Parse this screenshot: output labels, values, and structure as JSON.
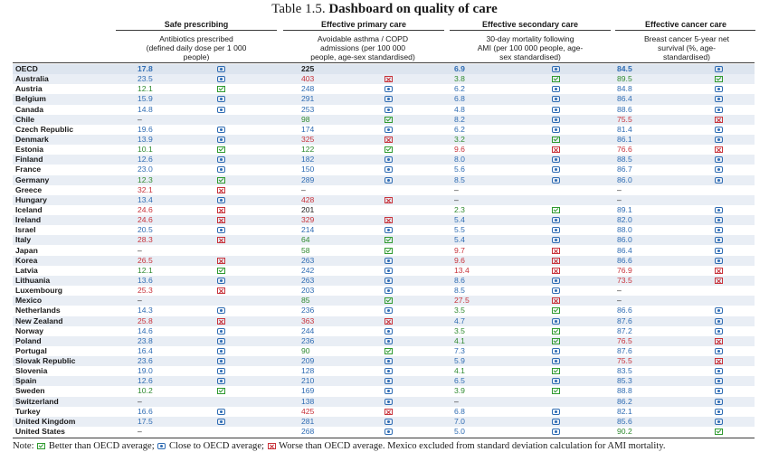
{
  "title_prefix": "Table 1.5.",
  "title_main": "Dashboard on quality of care",
  "groups": [
    {
      "label": "Safe prescribing",
      "sub": "Antibiotics prescribed\n(defined daily dose per 1 000\npeople)"
    },
    {
      "label": "Effective primary care",
      "sub": "Avoidable asthma / COPD\nadmissions (per 100 000\npeople, age-sex standardised)"
    },
    {
      "label": "Effective secondary care",
      "sub": "30-day mortality following\nAMI (per 100 000 people, age-\nsex standardised)"
    },
    {
      "label": "Effective cancer care",
      "sub": "Breast cancer 5-year net\nsurvival (%, age-\nstandardised)"
    }
  ],
  "rows": [
    {
      "country": "OECD",
      "v1": "17.8",
      "s1": "c",
      "v2": "225",
      "s2": "n",
      "v3": "6.9",
      "s3": "c",
      "v4": "84.5",
      "s4": "c"
    },
    {
      "country": "Australia",
      "v1": "23.5",
      "s1": "c",
      "v2": "403",
      "s2": "w",
      "v3": "3.8",
      "s3": "b",
      "v4": "89.5",
      "s4": "b"
    },
    {
      "country": "Austria",
      "v1": "12.1",
      "s1": "b",
      "v2": "248",
      "s2": "c",
      "v3": "6.2",
      "s3": "c",
      "v4": "84.8",
      "s4": "c"
    },
    {
      "country": "Belgium",
      "v1": "15.9",
      "s1": "c",
      "v2": "291",
      "s2": "c",
      "v3": "6.8",
      "s3": "c",
      "v4": "86.4",
      "s4": "c"
    },
    {
      "country": "Canada",
      "v1": "14.8",
      "s1": "c",
      "v2": "253",
      "s2": "c",
      "v3": "4.8",
      "s3": "c",
      "v4": "88.6",
      "s4": "c"
    },
    {
      "country": "Chile",
      "v1": "–",
      "s1": "",
      "v2": "98",
      "s2": "b",
      "v3": "8.2",
      "s3": "c",
      "v4": "75.5",
      "s4": "w"
    },
    {
      "country": "Czech Republic",
      "v1": "19.6",
      "s1": "c",
      "v2": "174",
      "s2": "c",
      "v3": "6.2",
      "s3": "c",
      "v4": "81.4",
      "s4": "c"
    },
    {
      "country": "Denmark",
      "v1": "13.9",
      "s1": "c",
      "v2": "325",
      "s2": "w",
      "v3": "3.2",
      "s3": "b",
      "v4": "86.1",
      "s4": "c"
    },
    {
      "country": "Estonia",
      "v1": "10.1",
      "s1": "b",
      "v2": "122",
      "s2": "b",
      "v3": "9.6",
      "s3": "w",
      "v4": "76.6",
      "s4": "w"
    },
    {
      "country": "Finland",
      "v1": "12.6",
      "s1": "c",
      "v2": "182",
      "s2": "c",
      "v3": "8.0",
      "s3": "c",
      "v4": "88.5",
      "s4": "c"
    },
    {
      "country": "France",
      "v1": "23.0",
      "s1": "c",
      "v2": "150",
      "s2": "c",
      "v3": "5.6",
      "s3": "c",
      "v4": "86.7",
      "s4": "c"
    },
    {
      "country": "Germany",
      "v1": "12.3",
      "s1": "b",
      "v2": "289",
      "s2": "c",
      "v3": "8.5",
      "s3": "c",
      "v4": "86.0",
      "s4": "c"
    },
    {
      "country": "Greece",
      "v1": "32.1",
      "s1": "w",
      "v2": "–",
      "s2": "",
      "v3": "–",
      "s3": "",
      "v4": "–",
      "s4": ""
    },
    {
      "country": "Hungary",
      "v1": "13.4",
      "s1": "c",
      "v2": "428",
      "s2": "w",
      "v3": "–",
      "s3": "",
      "v4": "–",
      "s4": ""
    },
    {
      "country": "Iceland",
      "v1": "24.6",
      "s1": "w",
      "v2": "201",
      "s2": "n",
      "v3": "2.3",
      "s3": "b",
      "v4": "89.1",
      "s4": "c"
    },
    {
      "country": "Ireland",
      "v1": "24.6",
      "s1": "w",
      "v2": "329",
      "s2": "w",
      "v3": "5.4",
      "s3": "c",
      "v4": "82.0",
      "s4": "c"
    },
    {
      "country": "Israel",
      "v1": "20.5",
      "s1": "c",
      "v2": "214",
      "s2": "c",
      "v3": "5.5",
      "s3": "c",
      "v4": "88.0",
      "s4": "c"
    },
    {
      "country": "Italy",
      "v1": "28.3",
      "s1": "w",
      "v2": "64",
      "s2": "b",
      "v3": "5.4",
      "s3": "c",
      "v4": "86.0",
      "s4": "c"
    },
    {
      "country": "Japan",
      "v1": "–",
      "s1": "",
      "v2": "58",
      "s2": "b",
      "v3": "9.7",
      "s3": "w",
      "v4": "86.4",
      "s4": "c"
    },
    {
      "country": "Korea",
      "v1": "26.5",
      "s1": "w",
      "v2": "263",
      "s2": "c",
      "v3": "9.6",
      "s3": "w",
      "v4": "86.6",
      "s4": "c"
    },
    {
      "country": "Latvia",
      "v1": "12.1",
      "s1": "b",
      "v2": "242",
      "s2": "c",
      "v3": "13.4",
      "s3": "w",
      "v4": "76.9",
      "s4": "w"
    },
    {
      "country": "Lithuania",
      "v1": "13.6",
      "s1": "c",
      "v2": "263",
      "s2": "c",
      "v3": "8.6",
      "s3": "c",
      "v4": "73.5",
      "s4": "w"
    },
    {
      "country": "Luxembourg",
      "v1": "25.3",
      "s1": "w",
      "v2": "203",
      "s2": "c",
      "v3": "8.5",
      "s3": "c",
      "v4": "–",
      "s4": ""
    },
    {
      "country": "Mexico",
      "v1": "–",
      "s1": "",
      "v2": "85",
      "s2": "b",
      "v3": "27.5",
      "s3": "w",
      "v4": "–",
      "s4": ""
    },
    {
      "country": "Netherlands",
      "v1": "14.3",
      "s1": "c",
      "v2": "236",
      "s2": "c",
      "v3": "3.5",
      "s3": "b",
      "v4": "86.6",
      "s4": "c"
    },
    {
      "country": "New Zealand",
      "v1": "25.8",
      "s1": "w",
      "v2": "363",
      "s2": "w",
      "v3": "4.7",
      "s3": "c",
      "v4": "87.6",
      "s4": "c"
    },
    {
      "country": "Norway",
      "v1": "14.6",
      "s1": "c",
      "v2": "244",
      "s2": "c",
      "v3": "3.5",
      "s3": "b",
      "v4": "87.2",
      "s4": "c"
    },
    {
      "country": "Poland",
      "v1": "23.8",
      "s1": "c",
      "v2": "236",
      "s2": "c",
      "v3": "4.1",
      "s3": "b",
      "v4": "76.5",
      "s4": "w"
    },
    {
      "country": "Portugal",
      "v1": "16.4",
      "s1": "c",
      "v2": "90",
      "s2": "b",
      "v3": "7.3",
      "s3": "c",
      "v4": "87.6",
      "s4": "c"
    },
    {
      "country": "Slovak Republic",
      "v1": "23.6",
      "s1": "c",
      "v2": "209",
      "s2": "c",
      "v3": "5.9",
      "s3": "c",
      "v4": "75.5",
      "s4": "w"
    },
    {
      "country": "Slovenia",
      "v1": "19.0",
      "s1": "c",
      "v2": "128",
      "s2": "c",
      "v3": "4.1",
      "s3": "b",
      "v4": "83.5",
      "s4": "c"
    },
    {
      "country": "Spain",
      "v1": "12.6",
      "s1": "c",
      "v2": "210",
      "s2": "c",
      "v3": "6.5",
      "s3": "c",
      "v4": "85.3",
      "s4": "c"
    },
    {
      "country": "Sweden",
      "v1": "10.2",
      "s1": "b",
      "v2": "169",
      "s2": "c",
      "v3": "3.9",
      "s3": "b",
      "v4": "88.8",
      "s4": "c"
    },
    {
      "country": "Switzerland",
      "v1": "–",
      "s1": "",
      "v2": "138",
      "s2": "c",
      "v3": "–",
      "s3": "",
      "v4": "86.2",
      "s4": "c"
    },
    {
      "country": "Turkey",
      "v1": "16.6",
      "s1": "c",
      "v2": "425",
      "s2": "w",
      "v3": "6.8",
      "s3": "c",
      "v4": "82.1",
      "s4": "c"
    },
    {
      "country": "United Kingdom",
      "v1": "17.5",
      "s1": "c",
      "v2": "281",
      "s2": "c",
      "v3": "7.0",
      "s3": "c",
      "v4": "85.6",
      "s4": "c"
    },
    {
      "country": "United States",
      "v1": "–",
      "s1": "",
      "v2": "268",
      "s2": "c",
      "v3": "5.0",
      "s3": "c",
      "v4": "90.2",
      "s4": "b"
    }
  ],
  "note": {
    "prefix": "Note:",
    "better": "Better than OECD average;",
    "close": "Close to OECD average;",
    "worse": "Worse than OECD average. Mexico excluded from standard deviation calculation for AMI mortality."
  },
  "colors": {
    "better": "#2f9a2f",
    "close": "#2f6cb3",
    "worse": "#c8323a"
  },
  "icons": {
    "better": "check-box-icon",
    "close": "circle-dot-icon",
    "worse": "cross-box-icon"
  }
}
